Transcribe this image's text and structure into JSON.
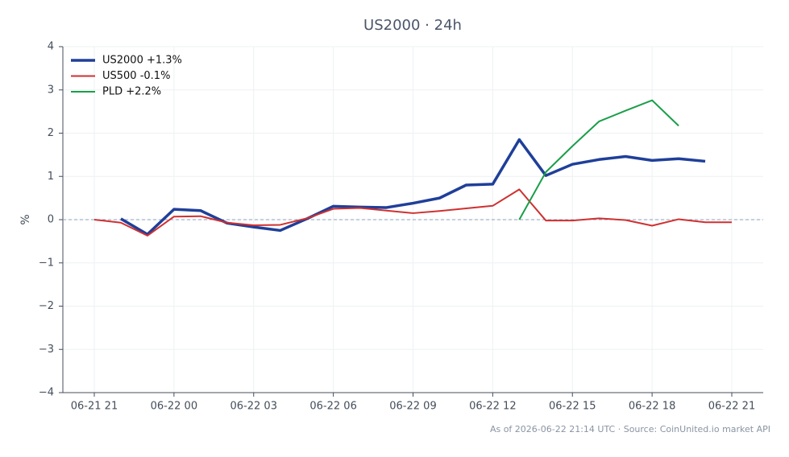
{
  "chart_data": {
    "type": "line",
    "title": "US2000 · 24h",
    "y_label": "%",
    "x": [
      "06-21 21",
      "06-21 22",
      "06-21 23",
      "06-22 00",
      "06-22 01",
      "06-22 02",
      "06-22 03",
      "06-22 04",
      "06-22 05",
      "06-22 06",
      "06-22 07",
      "06-22 08",
      "06-22 09",
      "06-22 10",
      "06-22 11",
      "06-22 12",
      "06-22 13",
      "06-22 14",
      "06-22 15",
      "06-22 16",
      "06-22 17",
      "06-22 18",
      "06-22 19",
      "06-22 20",
      "06-22 21"
    ],
    "xticks": [
      "06-21 21",
      "06-22 00",
      "06-22 03",
      "06-22 06",
      "06-22 09",
      "06-22 12",
      "06-22 15",
      "06-22 18",
      "06-22 21"
    ],
    "series": [
      {
        "name": "US2000 +1.3%",
        "color": "#1f3f99",
        "width": 3.5,
        "values": [
          null,
          0.02,
          -0.34,
          0.24,
          0.21,
          -0.08,
          -0.17,
          -0.25,
          0.02,
          0.31,
          0.29,
          0.28,
          0.38,
          0.5,
          0.8,
          0.82,
          1.85,
          1.02,
          1.28,
          1.39,
          1.46,
          1.37,
          1.41,
          1.35,
          null
        ]
      },
      {
        "name": "US500 -0.1%",
        "color": "#d03030",
        "width": 2,
        "values": [
          0,
          -0.07,
          -0.37,
          0.07,
          0.08,
          -0.07,
          -0.13,
          -0.12,
          0.03,
          0.25,
          0.27,
          0.21,
          0.15,
          0.2,
          0.26,
          0.32,
          0.7,
          -0.02,
          -0.02,
          0.03,
          -0.01,
          -0.14,
          0.01,
          -0.06,
          -0.06
        ]
      },
      {
        "name": "PLD +2.2%",
        "color": "#1a9e4a",
        "width": 2,
        "values": [
          null,
          null,
          null,
          null,
          null,
          null,
          null,
          null,
          null,
          null,
          null,
          null,
          null,
          null,
          null,
          null,
          0,
          1.1,
          1.7,
          2.27,
          2.52,
          2.76,
          2.17,
          null,
          null
        ]
      }
    ],
    "ylim": [
      -4,
      4
    ],
    "yticks": [
      {
        "value": -4,
        "label": "−4"
      },
      {
        "value": -3,
        "label": "−3"
      },
      {
        "value": -2,
        "label": "−2"
      },
      {
        "value": -1,
        "label": "−1"
      },
      0,
      1,
      2,
      3,
      4
    ],
    "grid": true,
    "zero_line": true,
    "legend": "upper-left",
    "source": "As of 2026-06-22 21:14 UTC · Source: CoinUnited.io market API"
  }
}
